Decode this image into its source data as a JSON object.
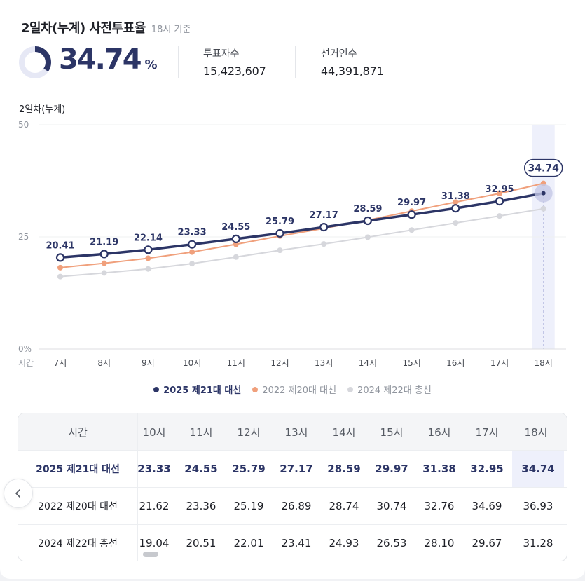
{
  "header": {
    "title": "2일차(누계) 사전투표율",
    "as_of": "18시 기준",
    "rate_value": "34.74",
    "rate_unit": "%",
    "rate_fraction": 0.3474,
    "voters_label": "투표자수",
    "voters_value": "15,423,607",
    "electors_label": "선거인수",
    "electors_value": "44,391,871"
  },
  "colors": {
    "s2025": "#2c3566",
    "s2022": "#f0a07c",
    "s2024": "#d6d7dc"
  },
  "chart_data": {
    "type": "line",
    "ylabel": "2일차(누계)",
    "xlabel": "시간",
    "ylim": [
      0,
      50
    ],
    "y_ticks": [
      "50",
      "25",
      "0%"
    ],
    "y_tick_values": [
      50,
      25,
      0
    ],
    "categories": [
      "7시",
      "8시",
      "9시",
      "10시",
      "11시",
      "12시",
      "13시",
      "14시",
      "15시",
      "16시",
      "17시",
      "18시"
    ],
    "highlight_category": "18시",
    "grid": true,
    "legend_position": "bottom",
    "series": [
      {
        "name": "2025 제21대 대선",
        "key": "s2025",
        "values": [
          20.41,
          21.19,
          22.14,
          23.33,
          24.55,
          25.79,
          27.17,
          28.59,
          29.97,
          31.38,
          32.95,
          34.74
        ],
        "labels_shown": true
      },
      {
        "name": "2022 제20대 대선",
        "key": "s2022",
        "values": [
          18.15,
          19.13,
          20.24,
          21.62,
          23.36,
          25.19,
          26.89,
          28.74,
          30.74,
          32.76,
          34.69,
          36.93
        ],
        "labels_shown": false
      },
      {
        "name": "2024 제22대 총선",
        "key": "s2024",
        "values": [
          16.15,
          16.97,
          17.86,
          19.04,
          20.51,
          22.01,
          23.41,
          24.93,
          26.53,
          28.1,
          29.67,
          31.28
        ],
        "labels_shown": false
      }
    ]
  },
  "legend": {
    "s2025": "2025 제21대 대선",
    "s2022": "2022 제20대 대선",
    "s2024": "2024 제22대 총선"
  },
  "table": {
    "corner": "시간",
    "columns": [
      "10시",
      "11시",
      "12시",
      "13시",
      "14시",
      "15시",
      "16시",
      "17시",
      "18시"
    ],
    "rows": [
      {
        "label": "2025 제21대 대선",
        "values": [
          "23.33",
          "24.55",
          "25.79",
          "27.17",
          "28.59",
          "29.97",
          "31.38",
          "32.95",
          "34.74"
        ]
      },
      {
        "label": "2022 제20대 대선",
        "values": [
          "21.62",
          "23.36",
          "25.19",
          "26.89",
          "28.74",
          "30.74",
          "32.76",
          "34.69",
          "36.93"
        ]
      },
      {
        "label": "2024 제22대 총선",
        "values": [
          "19.04",
          "20.51",
          "22.01",
          "23.41",
          "24.93",
          "26.53",
          "28.10",
          "29.67",
          "31.28"
        ]
      }
    ]
  }
}
